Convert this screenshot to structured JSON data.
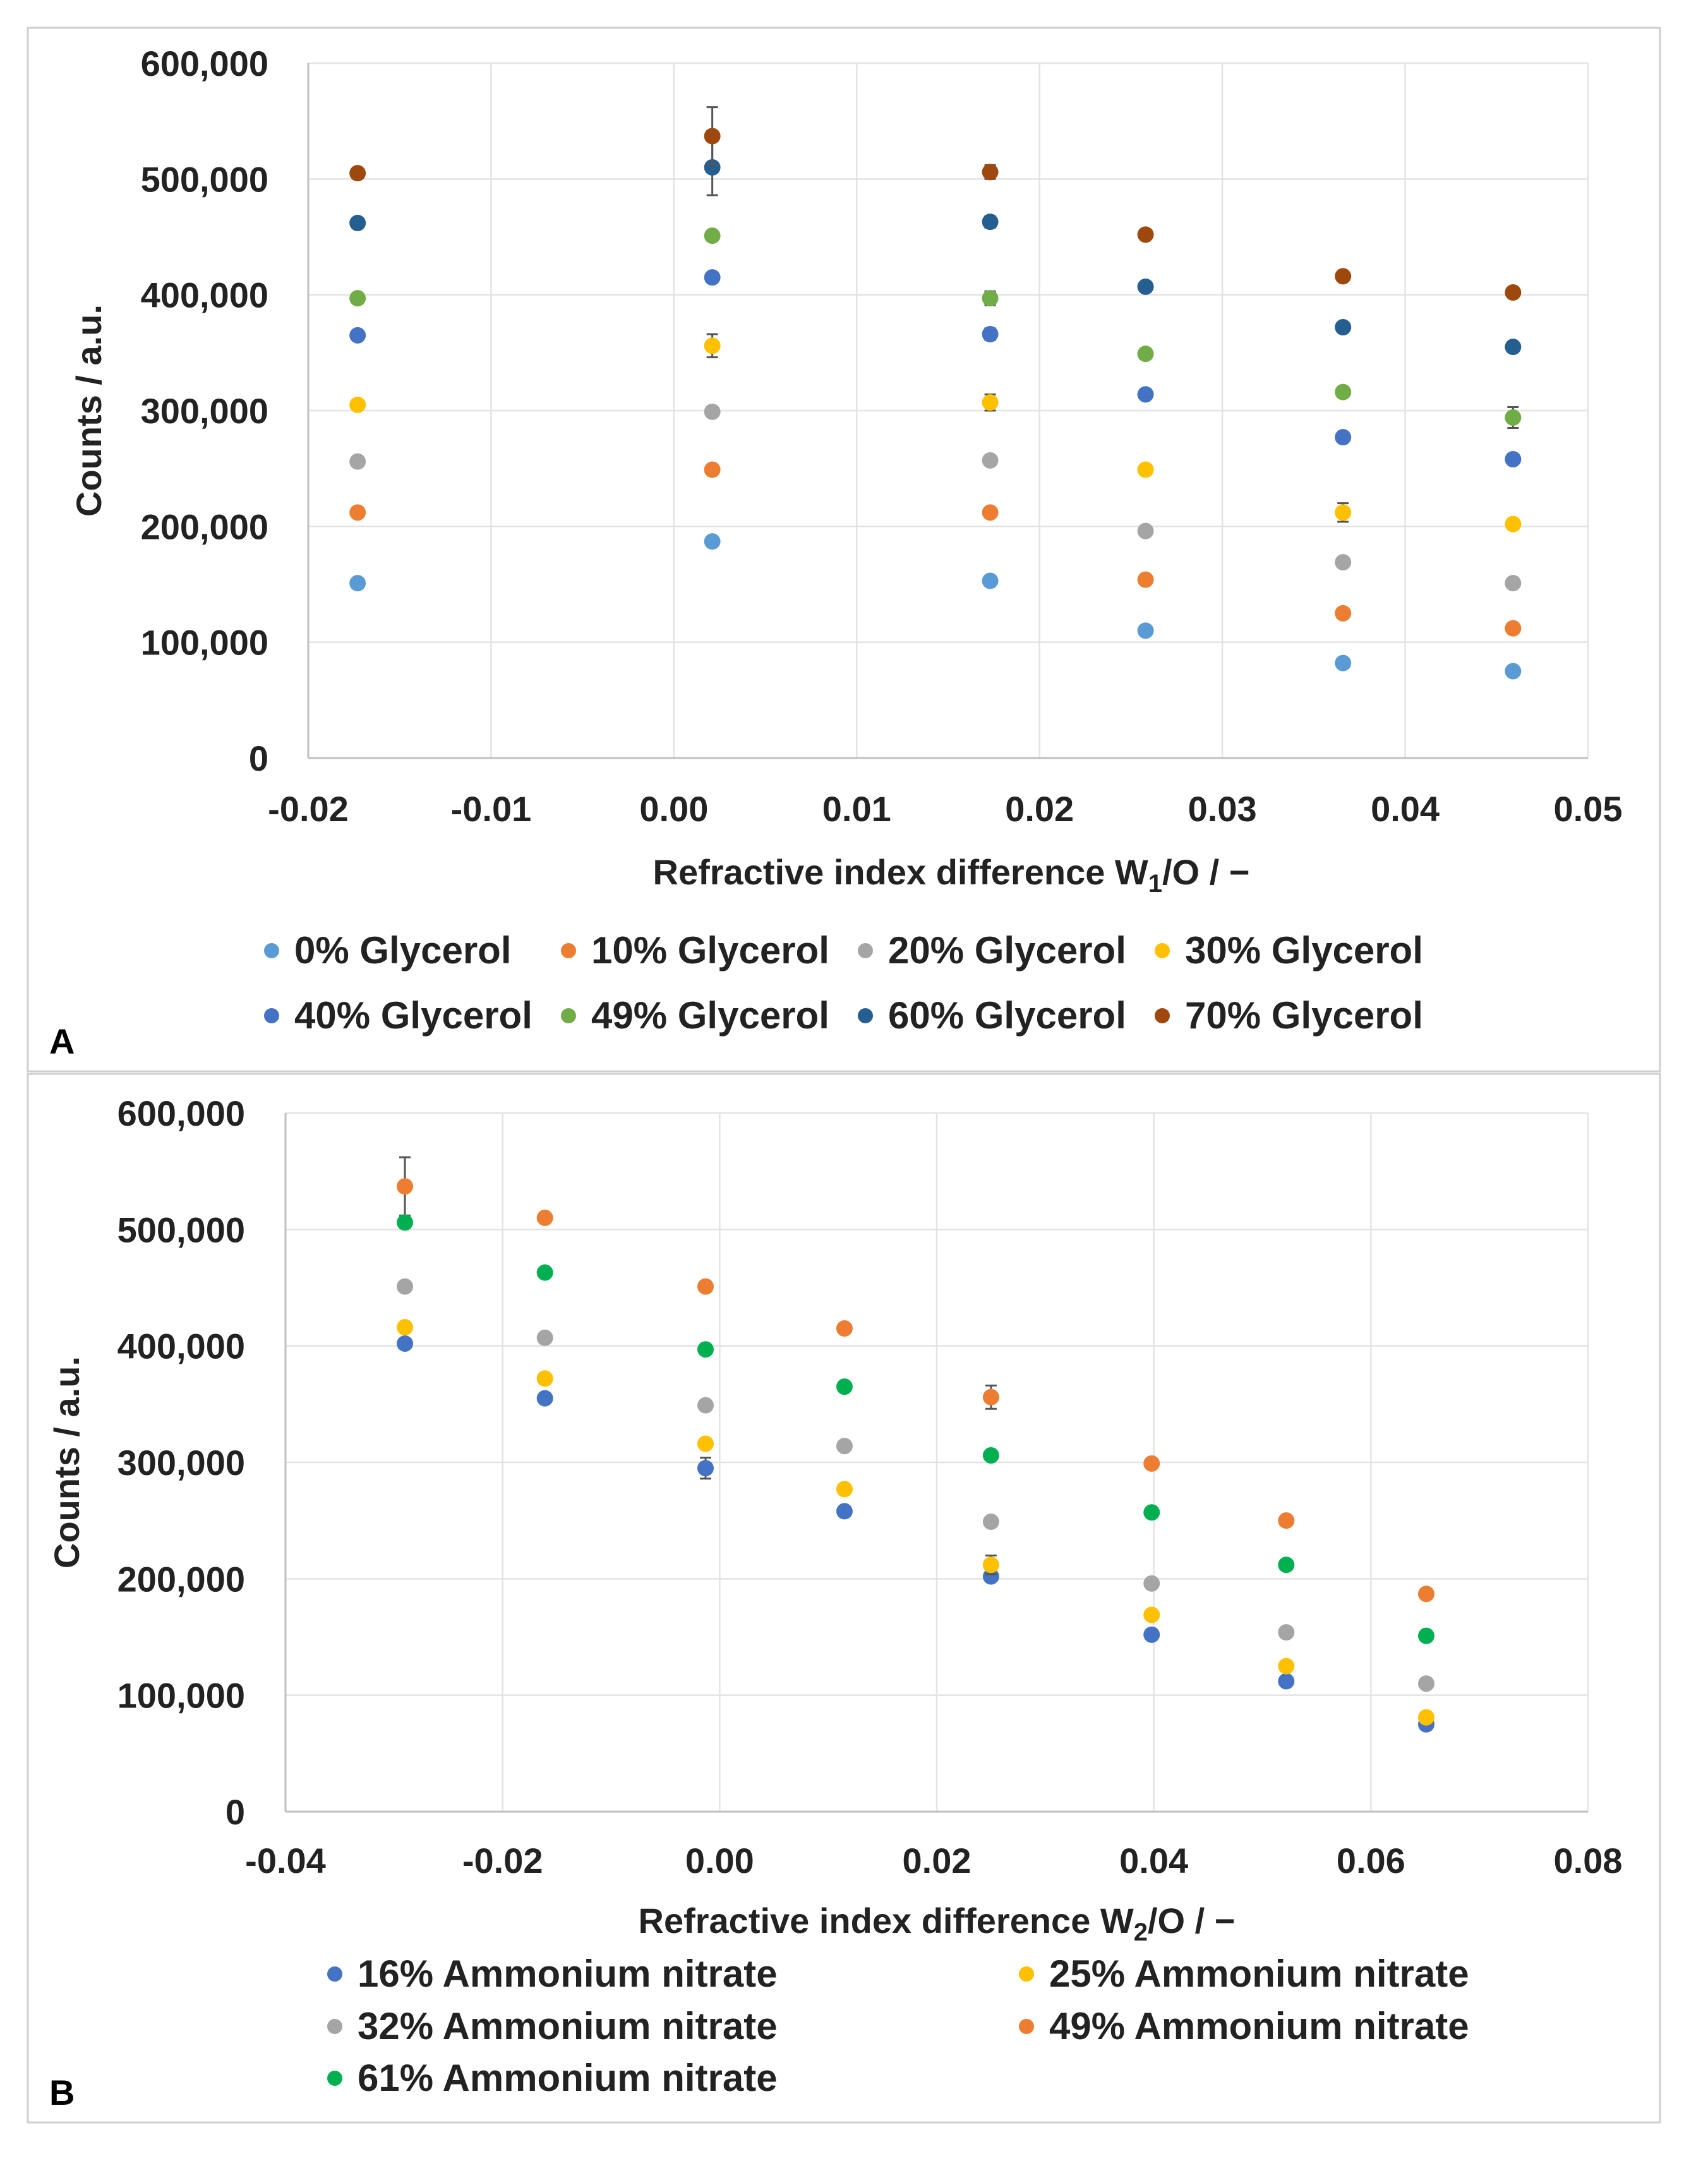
{
  "chart_data": [
    {
      "panel_label": "A",
      "type": "scatter",
      "xlabel_main": "Refractive index difference  W",
      "xlabel_sub": "1",
      "xlabel_tail": "/O / −",
      "ylabel": "Counts / a.u.",
      "xlim": [
        -0.02,
        0.05
      ],
      "ylim": [
        0,
        600000
      ],
      "xticks": [
        -0.02,
        -0.01,
        0.0,
        0.01,
        0.02,
        0.03,
        0.04,
        0.05
      ],
      "xtick_labels": [
        "-0.02",
        "-0.01",
        "0.00",
        "0.01",
        "0.02",
        "0.03",
        "0.04",
        "0.05"
      ],
      "yticks": [
        0,
        100000,
        200000,
        300000,
        400000,
        500000,
        600000
      ],
      "ytick_labels": [
        "0",
        "100,000",
        "200,000",
        "300,000",
        "400,000",
        "500,000",
        "600,000"
      ],
      "grid": true,
      "legend_position": "bottom",
      "x": [
        -0.0173,
        0.0021,
        0.0173,
        0.0258,
        0.0366,
        0.0459
      ],
      "series": [
        {
          "name": "0% Glycerol",
          "color": "#5B9BD5",
          "values": [
            151000,
            187000,
            153000,
            110000,
            82000,
            75000
          ],
          "errors": [
            0,
            0,
            0,
            0,
            0,
            0
          ]
        },
        {
          "name": "10% Glycerol",
          "color": "#ED7D31",
          "values": [
            212000,
            249000,
            212000,
            154000,
            125000,
            112000
          ],
          "errors": [
            0,
            0,
            0,
            0,
            0,
            0
          ]
        },
        {
          "name": "20% Glycerol",
          "color": "#A5A5A5",
          "values": [
            256000,
            299000,
            257000,
            196000,
            169000,
            151000
          ],
          "errors": [
            0,
            0,
            0,
            0,
            0,
            0
          ]
        },
        {
          "name": "30% Glycerol",
          "color": "#FFC000",
          "values": [
            305000,
            356000,
            307000,
            249000,
            212000,
            202000
          ],
          "errors": [
            0,
            10000,
            7000,
            0,
            8000,
            0
          ]
        },
        {
          "name": "40% Glycerol",
          "color": "#4472C4",
          "values": [
            365000,
            415000,
            366000,
            314000,
            277000,
            258000
          ],
          "errors": [
            0,
            0,
            5000,
            0,
            0,
            0
          ]
        },
        {
          "name": "49% Glycerol",
          "color": "#70AD47",
          "values": [
            397000,
            451000,
            397000,
            349000,
            316000,
            294000
          ],
          "errors": [
            0,
            0,
            6000,
            0,
            0,
            9000
          ]
        },
        {
          "name": "60% Glycerol",
          "color": "#255E91",
          "values": [
            462000,
            510000,
            463000,
            407000,
            372000,
            355000
          ],
          "errors": [
            0,
            24000,
            5000,
            0,
            0,
            0
          ]
        },
        {
          "name": "70% Glycerol",
          "color": "#9E480E",
          "values": [
            505000,
            537000,
            506000,
            452000,
            416000,
            402000
          ],
          "errors": [
            0,
            25000,
            6000,
            0,
            0,
            0
          ]
        }
      ]
    },
    {
      "panel_label": "B",
      "type": "scatter",
      "xlabel_main": "Refractive index difference W",
      "xlabel_sub": "2",
      "xlabel_tail": "/O / −",
      "ylabel": "Counts / a.u.",
      "xlim": [
        -0.04,
        0.08
      ],
      "ylim": [
        0,
        600000
      ],
      "xticks": [
        -0.04,
        -0.02,
        0.0,
        0.02,
        0.04,
        0.06,
        0.08
      ],
      "xtick_labels": [
        "-0.04",
        "-0.02",
        "0.00",
        "0.02",
        "0.04",
        "0.06",
        "0.08"
      ],
      "yticks": [
        0,
        100000,
        200000,
        300000,
        400000,
        500000,
        600000
      ],
      "ytick_labels": [
        "0",
        "100,000",
        "200,000",
        "300,000",
        "400,000",
        "500,000",
        "600,000"
      ],
      "grid": true,
      "legend_position": "bottom",
      "x": [
        -0.029,
        -0.0161,
        -0.0013,
        0.0115,
        0.025,
        0.0398,
        0.0522,
        0.0651
      ],
      "series": [
        {
          "name": "16% Ammonium nitrate",
          "color": "#4472C4",
          "values": [
            402000,
            355000,
            295000,
            258000,
            202000,
            152000,
            112000,
            75000
          ],
          "errors": [
            0,
            0,
            9000,
            0,
            0,
            0,
            0,
            0
          ]
        },
        {
          "name": "25% Ammonium nitrate",
          "color": "#FFC000",
          "values": [
            416000,
            372000,
            316000,
            277000,
            212000,
            169000,
            125000,
            81000
          ],
          "errors": [
            0,
            0,
            0,
            0,
            8000,
            0,
            0,
            0
          ]
        },
        {
          "name": "32% Ammonium nitrate",
          "color": "#A5A5A5",
          "values": [
            451000,
            407000,
            349000,
            314000,
            249000,
            196000,
            154000,
            110000
          ],
          "errors": [
            0,
            0,
            0,
            0,
            0,
            0,
            0,
            0
          ]
        },
        {
          "name": "49% Ammonium nitrate",
          "color": "#ED7D31",
          "values": [
            537000,
            510000,
            451000,
            415000,
            356000,
            299000,
            250000,
            187000
          ],
          "errors": [
            25000,
            0,
            0,
            0,
            10000,
            0,
            0,
            0
          ]
        },
        {
          "name": "61% Ammonium nitrate",
          "color": "#00B050",
          "values": [
            506000,
            463000,
            397000,
            365000,
            306000,
            257000,
            212000,
            151000
          ],
          "errors": [
            0,
            0,
            0,
            0,
            0,
            0,
            0,
            0
          ]
        }
      ]
    }
  ]
}
